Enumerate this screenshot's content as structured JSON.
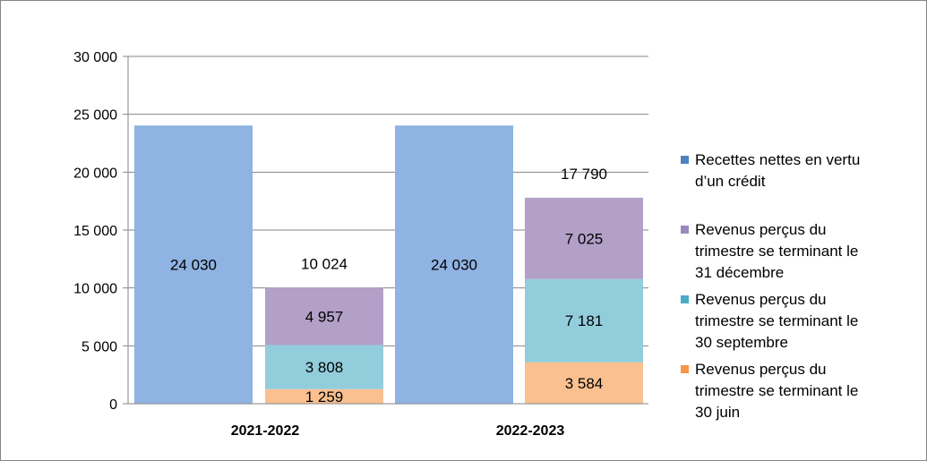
{
  "chart_data": {
    "type": "bar",
    "stacked": true,
    "categories": [
      "2021-2022",
      "2022-2023"
    ],
    "ylim": [
      0,
      30000
    ],
    "yticks": [
      0,
      5000,
      10000,
      15000,
      20000,
      25000,
      30000
    ],
    "ytick_labels": [
      "0",
      "5 000",
      "10 000",
      "15 000",
      "20 000",
      "25 000",
      "30 000"
    ],
    "grid": true,
    "legend_position": "right",
    "title": "",
    "xlabel": "",
    "ylabel": "",
    "bars": [
      {
        "category": "2021-2022",
        "series": "Recettes nettes en vertu d’un crédit",
        "value": 24030,
        "label": "24 030"
      },
      {
        "category": "2021-2022",
        "series": "revenus",
        "total": 10024,
        "total_label": "10 024",
        "segments": [
          {
            "series": "Revenus perçus du trimestre se terminant le 30 juin",
            "value": 1259,
            "label": "1 259"
          },
          {
            "series": "Revenus perçus du trimestre se terminant le 30 septembre",
            "value": 3808,
            "label": "3 808"
          },
          {
            "series": "Revenus perçus du trimestre se terminant le 31 décembre",
            "value": 4957,
            "label": "4 957"
          }
        ]
      },
      {
        "category": "2022-2023",
        "series": "Recettes nettes en vertu d’un crédit",
        "value": 24030,
        "label": "24 030"
      },
      {
        "category": "2022-2023",
        "series": "revenus",
        "total": 17790,
        "total_label": "17 790",
        "segments": [
          {
            "series": "Revenus perçus du trimestre se terminant le 30 juin",
            "value": 3584,
            "label": "3 584"
          },
          {
            "series": "Revenus perçus du trimestre se terminant le 30 septembre",
            "value": 7181,
            "label": "7 181"
          },
          {
            "series": "Revenus perçus du trimestre se terminant le 31 décembre",
            "value": 7025,
            "label": "7 025"
          }
        ]
      }
    ],
    "legend": [
      {
        "name": "Recettes nettes en vertu d’un crédit",
        "lines": [
          "Recettes nettes en vertu",
          "d’un crédit"
        ],
        "color": "#4f81bd"
      },
      {
        "name": "Revenus perçus du trimestre se terminant le 31 décembre",
        "lines": [
          "Revenus perçus du",
          "trimestre se terminant le",
          "31 décembre"
        ],
        "color": "#9e86c0"
      },
      {
        "name": "Revenus perçus du trimestre se terminant le 30 septembre",
        "lines": [
          "Revenus perçus du",
          "trimestre se terminant le",
          "30 septembre"
        ],
        "color": "#4bacc6"
      },
      {
        "name": "Revenus perçus du trimestre se terminant le 30 juin",
        "lines": [
          "Revenus perçus du",
          "trimestre se terminant le",
          "30 juin"
        ],
        "color": "#f79646"
      }
    ],
    "fill_colors": {
      "Recettes nettes en vertu d’un crédit": "#8fb3e2",
      "Revenus perçus du trimestre se terminant le 31 décembre": "#b2a0c8",
      "Revenus perçus du trimestre se terminant le 30 septembre": "#92cddc",
      "Revenus perçus du trimestre se terminant le 30 juin": "#fac090"
    },
    "gridline_color": "#868686"
  }
}
